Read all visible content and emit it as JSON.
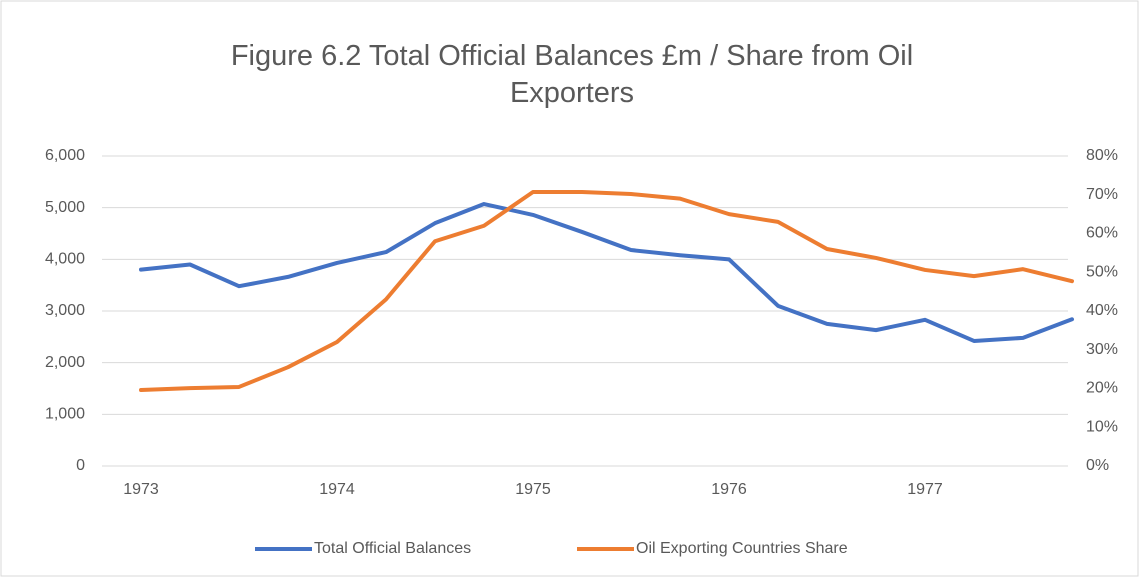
{
  "chart_data": {
    "type": "line",
    "title": "Figure 6.2 Total Official Balances £m / Share from Oil Exporters",
    "categories": [
      "1973",
      null,
      null,
      null,
      "1974",
      null,
      null,
      null,
      "1975",
      null,
      null,
      null,
      "1976",
      null,
      null,
      null,
      "1977",
      null,
      null,
      null
    ],
    "series": [
      {
        "name": "Total Official Balances",
        "color": "#4472c4",
        "values": [
          3800,
          3900,
          3480,
          3660,
          3930,
          4140,
          4700,
          5070,
          4860,
          4530,
          4180,
          4080,
          4000,
          3100,
          2750,
          2630,
          2830,
          2420,
          2480,
          2840
        ]
      },
      {
        "name": "Oil Exporting Countries Share",
        "color": "#ed7d31",
        "axis": "y2",
        "values": [
          19.6,
          20.1,
          20.4,
          25.5,
          32,
          43,
          58,
          62,
          70.7,
          70.7,
          70.2,
          69,
          65,
          63,
          56,
          53.7,
          50.6,
          49,
          50.8,
          47.7
        ]
      }
    ],
    "ylim": [
      0,
      6000
    ],
    "yticks": [
      0,
      {
        "value": 1000,
        "label": "1,000"
      },
      {
        "value": 2000,
        "label": "2,000"
      },
      {
        "value": 3000,
        "label": "3,000"
      },
      {
        "value": 4000,
        "label": "4,000"
      },
      {
        "value": 5000,
        "label": "5,000"
      },
      {
        "value": 6000,
        "label": "6,000"
      }
    ],
    "y2lim": [
      0,
      80
    ],
    "y2ticks": [
      {
        "value": 0,
        "label": "0%"
      },
      {
        "value": 10,
        "label": "10%"
      },
      {
        "value": 20,
        "label": "20%"
      },
      {
        "value": 30,
        "label": "30%"
      },
      {
        "value": 40,
        "label": "40%"
      },
      {
        "value": 50,
        "label": "50%"
      },
      {
        "value": 60,
        "label": "60%"
      },
      {
        "value": 70,
        "label": "70%"
      },
      {
        "value": 80,
        "label": "80%"
      }
    ],
    "grid": true,
    "legend": "bottom"
  }
}
